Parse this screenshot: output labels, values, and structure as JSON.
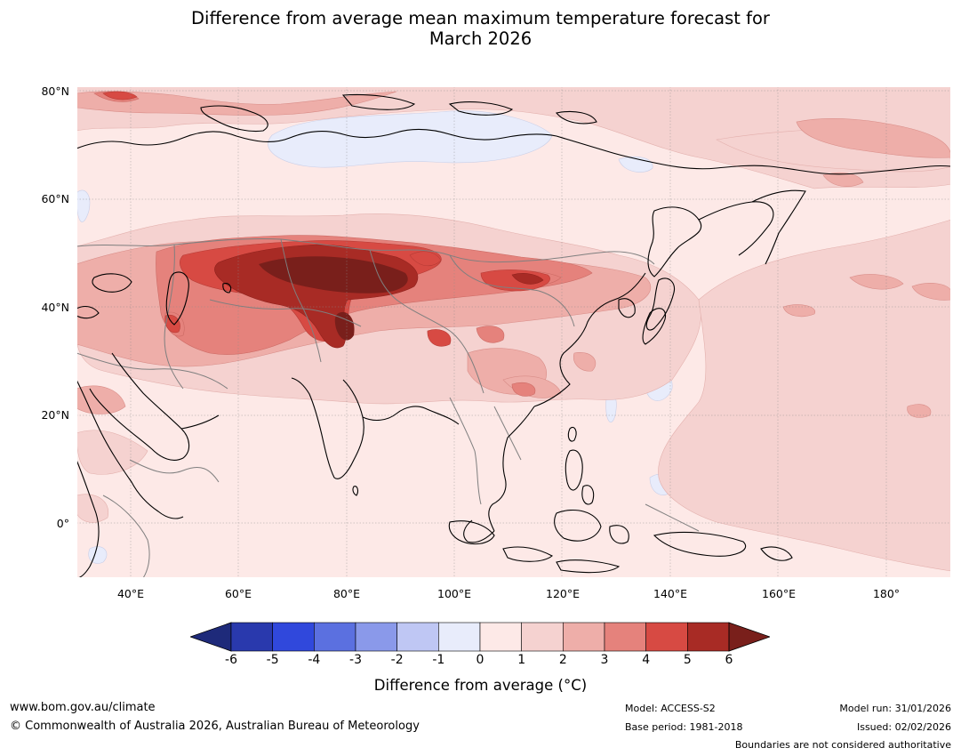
{
  "title": {
    "line1": "Difference from average mean maximum temperature forecast for",
    "line2": "March 2026"
  },
  "map": {
    "lat_labels": [
      "80°N",
      "60°N",
      "40°N",
      "20°N",
      "0°"
    ],
    "lon_labels": [
      "40°E",
      "60°E",
      "80°E",
      "100°E",
      "120°E",
      "140°E",
      "160°E",
      "180°"
    ],
    "anomaly_range_c": [
      -6,
      6
    ],
    "hotspot_region": "Central Asia / Western China",
    "cool_patches": [
      "Arctic Siberia",
      "Western Pacific"
    ]
  },
  "colorbar": {
    "ticks": [
      "-6",
      "-5",
      "-4",
      "-3",
      "-2",
      "-1",
      "0",
      "1",
      "2",
      "3",
      "4",
      "5",
      "6"
    ],
    "colors": [
      "#1e2a7a",
      "#2939ad",
      "#3048dc",
      "#5b70e0",
      "#8a99ea",
      "#bfc7f4",
      "#e8ecfb",
      "#fde9e7",
      "#f5d2d0",
      "#eeaea9",
      "#e5827c",
      "#d74a43",
      "#a82b25",
      "#791f1b"
    ],
    "label": "Difference from average (°C)"
  },
  "footer": {
    "url": "www.bom.gov.au/climate",
    "copyright": "© Commonwealth of Australia 2026, Australian Bureau of Meteorology",
    "model": "Model: ACCESS-S2",
    "base_period": "Base period: 1981-2018",
    "model_run": "Model run: 31/01/2026",
    "issued": "Issued: 02/02/2026",
    "disclaimer": "Boundaries are not considered authoritative"
  }
}
